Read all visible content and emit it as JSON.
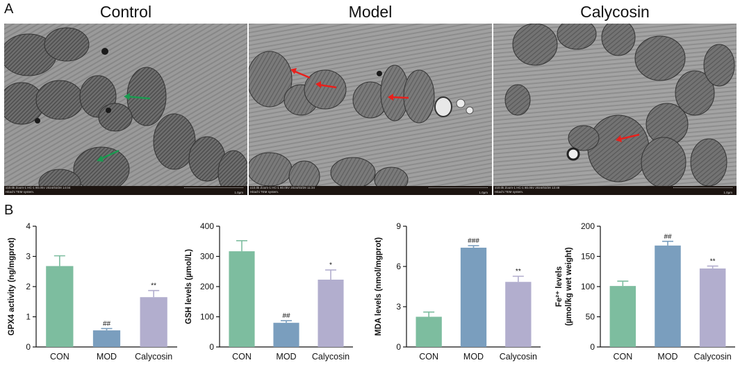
{
  "panels": {
    "a_label": "A",
    "b_label": "B"
  },
  "tem": [
    {
      "title": "Control",
      "meta1": "x10.0k Zoom-1 HC-1 80.0kV 2024/03/28 14:04",
      "meta2": "Hitachi TEM system.",
      "scale": "1.0µm",
      "arrow_color": "#1a9a50"
    },
    {
      "title": "Model",
      "meta1": "x10.0k Zoom-1 HC-1 80.0kV 2024/03/28 11:34",
      "meta2": "Hitachi TEM system.",
      "scale": "1.0µm",
      "arrow_color": "#e8201c"
    },
    {
      "title": "Calycosin",
      "meta1": "x10.0k Zoom-1 HC-1 80.0kV 2024/03/28 13:48",
      "meta2": "Hitachi TEM system.",
      "scale": "1.0µm",
      "arrow_color": "#e8201c"
    }
  ],
  "colors": {
    "CON": "#7dbd9f",
    "MOD": "#7a9ebe",
    "Calycosin": "#b2aece"
  },
  "chart_data": [
    {
      "type": "bar",
      "categories": [
        "CON",
        "MOD",
        "Calycosin"
      ],
      "values": [
        2.68,
        0.55,
        1.65
      ],
      "errors": [
        0.34,
        0.06,
        0.22
      ],
      "significance": [
        "",
        "##",
        "**"
      ],
      "ylabel": "GPX4 activity (ng/mgprot)",
      "ylim": [
        0,
        4
      ],
      "yticks": [
        0,
        1,
        2,
        3,
        4
      ]
    },
    {
      "type": "bar",
      "categories": [
        "CON",
        "MOD",
        "Calycosin"
      ],
      "values": [
        317,
        80,
        223
      ],
      "errors": [
        35,
        7,
        32
      ],
      "significance": [
        "",
        "##",
        "*"
      ],
      "ylabel": "GSH levels (µmol/L)",
      "ylim": [
        0,
        400
      ],
      "yticks": [
        0,
        100,
        200,
        300,
        400
      ]
    },
    {
      "type": "bar",
      "categories": [
        "CON",
        "MOD",
        "Calycosin"
      ],
      "values": [
        2.25,
        7.4,
        4.85
      ],
      "errors": [
        0.35,
        0.15,
        0.42
      ],
      "significance": [
        "",
        "###",
        "**"
      ],
      "ylabel": "MDA levels (nmol/mgprot)",
      "ylim": [
        0,
        9
      ],
      "yticks": [
        0,
        3,
        6,
        9
      ]
    },
    {
      "type": "bar",
      "categories": [
        "CON",
        "MOD",
        "Calycosin"
      ],
      "values": [
        101,
        168,
        130
      ],
      "errors": [
        8,
        7,
        4
      ],
      "significance": [
        "",
        "##",
        "**"
      ],
      "ylabel_line1": "Fe²⁺ levels",
      "ylabel_line2": "(µmol/kg wet weight)",
      "ylim": [
        0,
        200
      ],
      "yticks": [
        0,
        50,
        100,
        150,
        200
      ]
    }
  ]
}
